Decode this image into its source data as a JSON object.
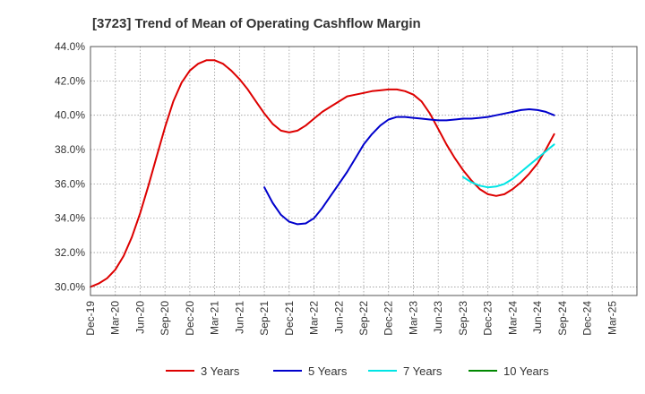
{
  "chart_data": {
    "type": "line",
    "title": "[3723]  Trend of Mean of Operating Cashflow Margin",
    "xlabel": "",
    "ylabel": "",
    "ylim": [
      29.5,
      44.0
    ],
    "y_ticks": [
      30.0,
      32.0,
      34.0,
      36.0,
      38.0,
      40.0,
      42.0,
      44.0
    ],
    "y_tick_labels": [
      "30.0%",
      "32.0%",
      "34.0%",
      "36.0%",
      "38.0%",
      "40.0%",
      "42.0%",
      "44.0%"
    ],
    "x_tick_labels": [
      "Dec-19",
      "Mar-20",
      "Jun-20",
      "Sep-20",
      "Dec-20",
      "Mar-21",
      "Jun-21",
      "Sep-21",
      "Dec-21",
      "Mar-22",
      "Jun-22",
      "Sep-22",
      "Dec-22",
      "Mar-23",
      "Jun-23",
      "Sep-23",
      "Dec-23",
      "Mar-24",
      "Jun-24",
      "Sep-24",
      "Dec-24",
      "Mar-25"
    ],
    "x_range_months": [
      0,
      66
    ],
    "grid": true,
    "legend_position": "bottom",
    "series": [
      {
        "name": "3 Years",
        "color": "#dd0000",
        "points": [
          [
            0,
            30.0
          ],
          [
            1,
            30.2
          ],
          [
            2,
            30.5
          ],
          [
            3,
            31.0
          ],
          [
            4,
            31.8
          ],
          [
            5,
            32.9
          ],
          [
            6,
            34.3
          ],
          [
            7,
            35.9
          ],
          [
            8,
            37.6
          ],
          [
            9,
            39.3
          ],
          [
            10,
            40.8
          ],
          [
            11,
            41.9
          ],
          [
            12,
            42.6
          ],
          [
            13,
            43.0
          ],
          [
            14,
            43.2
          ],
          [
            15,
            43.2
          ],
          [
            16,
            43.0
          ],
          [
            17,
            42.6
          ],
          [
            18,
            42.1
          ],
          [
            19,
            41.5
          ],
          [
            20,
            40.8
          ],
          [
            21,
            40.1
          ],
          [
            22,
            39.5
          ],
          [
            23,
            39.1
          ],
          [
            24,
            39.0
          ],
          [
            25,
            39.1
          ],
          [
            26,
            39.4
          ],
          [
            27,
            39.8
          ],
          [
            28,
            40.2
          ],
          [
            29,
            40.5
          ],
          [
            30,
            40.8
          ],
          [
            31,
            41.1
          ],
          [
            32,
            41.2
          ],
          [
            33,
            41.3
          ],
          [
            34,
            41.4
          ],
          [
            35,
            41.45
          ],
          [
            36,
            41.5
          ],
          [
            37,
            41.5
          ],
          [
            38,
            41.4
          ],
          [
            39,
            41.2
          ],
          [
            40,
            40.8
          ],
          [
            41,
            40.1
          ],
          [
            42,
            39.2
          ],
          [
            43,
            38.3
          ],
          [
            44,
            37.5
          ],
          [
            45,
            36.8
          ],
          [
            46,
            36.2
          ],
          [
            47,
            35.7
          ],
          [
            48,
            35.4
          ],
          [
            49,
            35.3
          ],
          [
            50,
            35.4
          ],
          [
            51,
            35.7
          ],
          [
            52,
            36.1
          ],
          [
            53,
            36.6
          ],
          [
            54,
            37.2
          ],
          [
            55,
            38.0
          ],
          [
            56,
            38.9
          ]
        ]
      },
      {
        "name": "5 Years",
        "color": "#0000cc",
        "points": [
          [
            21,
            35.8
          ],
          [
            22,
            34.9
          ],
          [
            23,
            34.2
          ],
          [
            24,
            33.8
          ],
          [
            25,
            33.65
          ],
          [
            26,
            33.7
          ],
          [
            27,
            34.0
          ],
          [
            28,
            34.6
          ],
          [
            29,
            35.3
          ],
          [
            30,
            36.0
          ],
          [
            31,
            36.7
          ],
          [
            32,
            37.5
          ],
          [
            33,
            38.3
          ],
          [
            34,
            38.9
          ],
          [
            35,
            39.4
          ],
          [
            36,
            39.75
          ],
          [
            37,
            39.9
          ],
          [
            38,
            39.9
          ],
          [
            39,
            39.85
          ],
          [
            40,
            39.8
          ],
          [
            41,
            39.75
          ],
          [
            42,
            39.7
          ],
          [
            43,
            39.7
          ],
          [
            44,
            39.75
          ],
          [
            45,
            39.8
          ],
          [
            46,
            39.8
          ],
          [
            47,
            39.85
          ],
          [
            48,
            39.9
          ],
          [
            49,
            40.0
          ],
          [
            50,
            40.1
          ],
          [
            51,
            40.2
          ],
          [
            52,
            40.3
          ],
          [
            53,
            40.35
          ],
          [
            54,
            40.3
          ],
          [
            55,
            40.2
          ],
          [
            56,
            40.0
          ]
        ]
      },
      {
        "name": "7 Years",
        "color": "#00e5e5",
        "points": [
          [
            45,
            36.4
          ],
          [
            46,
            36.1
          ],
          [
            47,
            35.9
          ],
          [
            48,
            35.8
          ],
          [
            49,
            35.85
          ],
          [
            50,
            36.0
          ],
          [
            51,
            36.3
          ],
          [
            52,
            36.7
          ],
          [
            53,
            37.1
          ],
          [
            54,
            37.5
          ],
          [
            55,
            37.9
          ],
          [
            56,
            38.3
          ]
        ]
      },
      {
        "name": "10 Years",
        "color": "#008800",
        "points": []
      }
    ]
  }
}
